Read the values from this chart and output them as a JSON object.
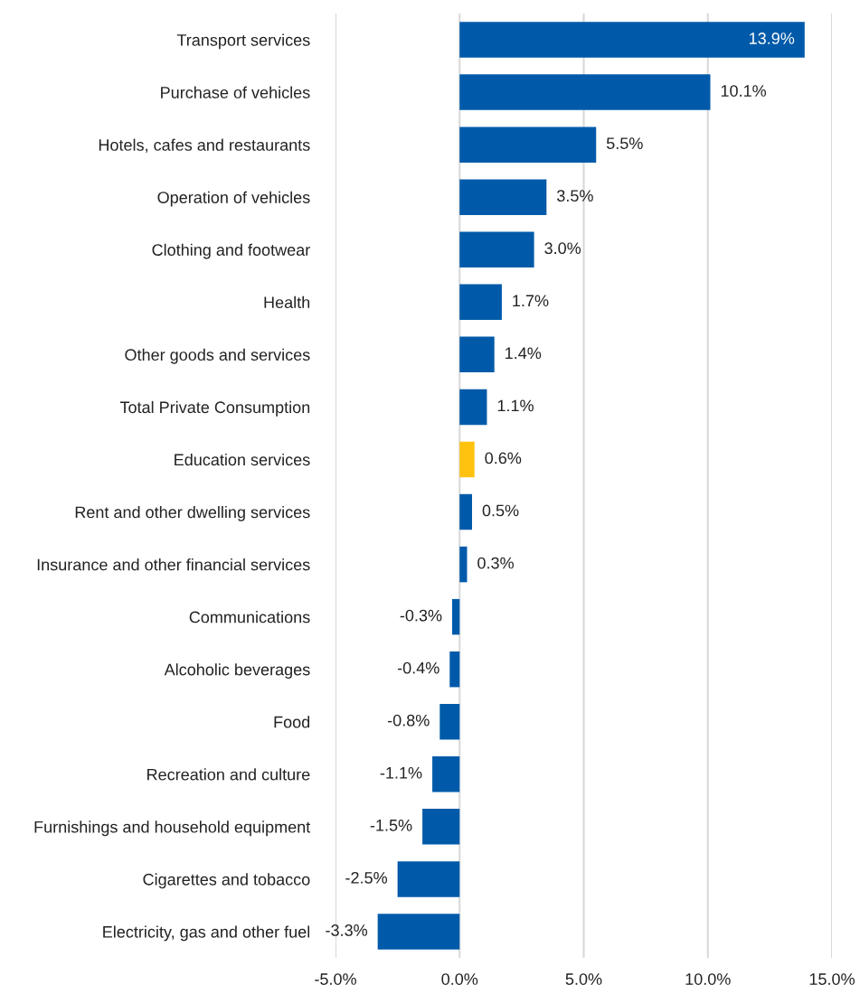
{
  "chart_data": {
    "type": "bar",
    "orientation": "horizontal",
    "categories": [
      "Transport services",
      "Purchase of vehicles",
      "Hotels, cafes and restaurants",
      "Operation of vehicles",
      "Clothing and footwear",
      "Health",
      "Other goods and services",
      "Total Private Consumption",
      "Education services",
      "Rent and other dwelling services",
      "Insurance and other financial services",
      "Communications",
      "Alcoholic beverages",
      "Food",
      "Recreation and culture",
      "Furnishings and household equipment",
      "Cigarettes and tobacco",
      "Electricity, gas and other fuel"
    ],
    "values": [
      13.9,
      10.1,
      5.5,
      3.5,
      3.0,
      1.7,
      1.4,
      1.1,
      0.6,
      0.5,
      0.3,
      -0.3,
      -0.4,
      -0.8,
      -1.1,
      -1.5,
      -2.5,
      -3.3
    ],
    "value_labels": [
      "13.9%",
      "10.1%",
      "5.5%",
      "3.5%",
      "3.0%",
      "1.7%",
      "1.4%",
      "1.1%",
      "0.6%",
      "0.5%",
      "0.3%",
      "-0.3%",
      "-0.4%",
      "-0.8%",
      "-1.1%",
      "-1.5%",
      "-2.5%",
      "-3.3%"
    ],
    "colors": [
      "#005aa9",
      "#005aa9",
      "#005aa9",
      "#005aa9",
      "#005aa9",
      "#005aa9",
      "#005aa9",
      "#005aa9",
      "#ffc20e",
      "#005aa9",
      "#005aa9",
      "#005aa9",
      "#005aa9",
      "#005aa9",
      "#005aa9",
      "#005aa9",
      "#005aa9",
      "#005aa9"
    ],
    "xlim": [
      -5,
      15
    ],
    "xticks": [
      {
        "value": -5,
        "label": "-5.0%"
      },
      {
        "value": 0,
        "label": "0.0%"
      },
      {
        "value": 5,
        "label": "5.0%"
      },
      {
        "value": 10,
        "label": "10.0%"
      },
      {
        "value": 15,
        "label": "15.0%"
      }
    ],
    "grid": "x",
    "legend": false
  }
}
